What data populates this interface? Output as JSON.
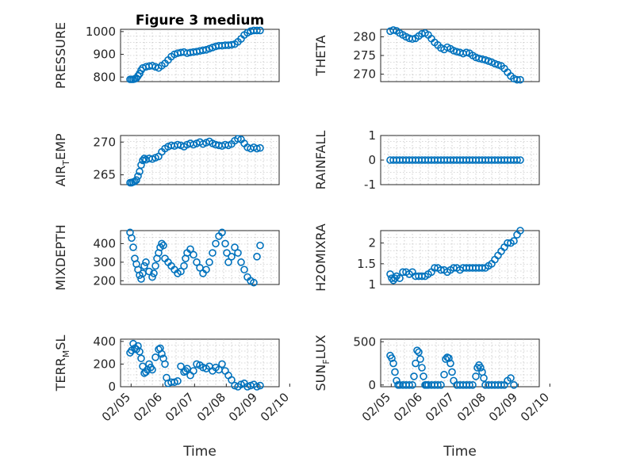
{
  "figure": {
    "title": "Figure 3 medium",
    "marker_color": "#0072BD"
  },
  "chart_data": [
    {
      "type": "scatter",
      "ylabel": "PRESSURE",
      "title": "Figure 3 medium",
      "ylim": [
        780,
        1010
      ],
      "yticks": [
        800,
        900,
        1000
      ],
      "xlim": [
        0,
        5
      ],
      "xticks": [],
      "xticklabels": [],
      "xlabel": "",
      "x": [
        0.3,
        0.35,
        0.4,
        0.45,
        0.5,
        0.55,
        0.6,
        0.65,
        0.7,
        0.8,
        0.9,
        1.0,
        1.1,
        1.2,
        1.3,
        1.4,
        1.5,
        1.6,
        1.7,
        1.8,
        1.9,
        2.0,
        2.1,
        2.2,
        2.3,
        2.4,
        2.5,
        2.6,
        2.7,
        2.8,
        2.9,
        3.0,
        3.1,
        3.2,
        3.3,
        3.4,
        3.5,
        3.6,
        3.7,
        3.8,
        3.9,
        4.0,
        4.1,
        4.2,
        4.3,
        4.4
      ],
      "y": [
        790,
        790,
        790,
        792,
        795,
        805,
        815,
        830,
        840,
        845,
        848,
        850,
        845,
        840,
        850,
        860,
        875,
        890,
        900,
        905,
        908,
        910,
        905,
        908,
        910,
        912,
        915,
        918,
        920,
        925,
        930,
        935,
        938,
        938,
        940,
        940,
        942,
        945,
        955,
        968,
        985,
        995,
        1002,
        1005,
        1005,
        1005
      ]
    },
    {
      "type": "scatter",
      "ylabel": "THETA",
      "ylim": [
        268,
        282
      ],
      "yticks": [
        270,
        275,
        280
      ],
      "xlim": [
        0,
        5
      ],
      "xticks": [],
      "xticklabels": [],
      "xlabel": "",
      "x": [
        0.3,
        0.4,
        0.5,
        0.6,
        0.7,
        0.8,
        0.9,
        1.0,
        1.1,
        1.2,
        1.3,
        1.4,
        1.5,
        1.6,
        1.7,
        1.8,
        1.9,
        2.0,
        2.1,
        2.2,
        2.3,
        2.4,
        2.5,
        2.6,
        2.7,
        2.8,
        2.9,
        3.0,
        3.1,
        3.2,
        3.3,
        3.4,
        3.5,
        3.6,
        3.7,
        3.8,
        3.9,
        4.0,
        4.1,
        4.2,
        4.3,
        4.4
      ],
      "y": [
        281.5,
        281.8,
        281.6,
        281,
        280.5,
        280,
        279.6,
        279.4,
        279.6,
        280.2,
        280.8,
        281,
        280.5,
        279.5,
        278.5,
        277.8,
        277,
        276.6,
        277.2,
        276.8,
        276.3,
        276,
        275.8,
        275.5,
        275.8,
        275.6,
        275,
        274.5,
        274.2,
        274,
        273.8,
        273.5,
        273.2,
        272.8,
        272.5,
        272.2,
        271.5,
        270.5,
        269.5,
        268.8,
        268.5,
        268.5
      ]
    },
    {
      "type": "scatter",
      "ylabel": "AIR_T_EMP",
      "ylabel_main": "AIR",
      "ylabel_sub": "T",
      "ylabel_rest": "EMP",
      "ylim": [
        263.5,
        271
      ],
      "yticks": [
        265,
        270
      ],
      "xlim": [
        0,
        5
      ],
      "xticks": [],
      "xticklabels": [],
      "xlabel": "",
      "x": [
        0.3,
        0.35,
        0.4,
        0.45,
        0.5,
        0.55,
        0.6,
        0.65,
        0.7,
        0.75,
        0.8,
        0.9,
        1.0,
        1.1,
        1.2,
        1.3,
        1.4,
        1.5,
        1.6,
        1.7,
        1.8,
        1.9,
        2.0,
        2.1,
        2.2,
        2.3,
        2.4,
        2.5,
        2.6,
        2.7,
        2.8,
        2.9,
        3.0,
        3.1,
        3.2,
        3.3,
        3.4,
        3.5,
        3.6,
        3.7,
        3.8,
        3.9,
        4.0,
        4.1,
        4.2,
        4.3,
        4.4
      ],
      "y": [
        263.8,
        263.8,
        263.9,
        264,
        264.2,
        264.8,
        265.5,
        266.5,
        267.2,
        267.5,
        267.3,
        267.5,
        267.4,
        267.6,
        267.8,
        268.5,
        269,
        269.3,
        269.5,
        269.4,
        269.6,
        269.5,
        269.3,
        269.6,
        269.8,
        269.6,
        269.8,
        270,
        269.7,
        269.9,
        270.1,
        269.8,
        269.6,
        269.5,
        269.4,
        269.6,
        269.5,
        269.7,
        270.2,
        270.5,
        270.4,
        269.8,
        269.2,
        269,
        269.2,
        269,
        269.1
      ]
    },
    {
      "type": "scatter",
      "ylabel": "RAINFALL",
      "ylim": [
        -1,
        1
      ],
      "yticks": [
        -1,
        0,
        1
      ],
      "xlim": [
        0,
        5
      ],
      "xticks": [],
      "xticklabels": [],
      "xlabel": "",
      "x": [
        0.3,
        0.4,
        0.5,
        0.6,
        0.7,
        0.8,
        0.9,
        1.0,
        1.1,
        1.2,
        1.3,
        1.4,
        1.5,
        1.6,
        1.7,
        1.8,
        1.9,
        2.0,
        2.1,
        2.2,
        2.3,
        2.4,
        2.5,
        2.6,
        2.7,
        2.8,
        2.9,
        3.0,
        3.1,
        3.2,
        3.3,
        3.4,
        3.5,
        3.6,
        3.7,
        3.8,
        3.9,
        4.0,
        4.1,
        4.2,
        4.3,
        4.4
      ],
      "y": [
        0,
        0,
        0,
        0,
        0,
        0,
        0,
        0,
        0,
        0,
        0,
        0,
        0,
        0,
        0,
        0,
        0,
        0,
        0,
        0,
        0,
        0,
        0,
        0,
        0,
        0,
        0,
        0,
        0,
        0,
        0,
        0,
        0,
        0,
        0,
        0,
        0,
        0,
        0,
        0,
        0,
        0
      ]
    },
    {
      "type": "scatter",
      "ylabel": "MIXDEPTH",
      "ylim": [
        180,
        470
      ],
      "yticks": [
        200,
        300,
        400
      ],
      "xlim": [
        0,
        5
      ],
      "xticks": [],
      "xticklabels": [],
      "xlabel": "",
      "x": [
        0.3,
        0.35,
        0.4,
        0.45,
        0.5,
        0.55,
        0.6,
        0.65,
        0.7,
        0.75,
        0.8,
        0.9,
        1.0,
        1.05,
        1.1,
        1.15,
        1.2,
        1.25,
        1.3,
        1.35,
        1.4,
        1.5,
        1.6,
        1.7,
        1.8,
        1.9,
        2.0,
        2.05,
        2.1,
        2.2,
        2.3,
        2.4,
        2.5,
        2.6,
        2.7,
        2.8,
        2.9,
        3.0,
        3.1,
        3.2,
        3.3,
        3.35,
        3.4,
        3.5,
        3.6,
        3.7,
        3.8,
        3.9,
        4.0,
        4.1,
        4.2,
        4.3,
        4.4
      ],
      "y": [
        460,
        430,
        380,
        320,
        290,
        260,
        230,
        210,
        240,
        280,
        300,
        250,
        220,
        240,
        280,
        320,
        350,
        380,
        400,
        390,
        320,
        300,
        280,
        260,
        240,
        250,
        280,
        320,
        350,
        370,
        340,
        300,
        270,
        240,
        260,
        300,
        350,
        400,
        440,
        460,
        400,
        350,
        300,
        330,
        380,
        350,
        300,
        260,
        220,
        200,
        190,
        330,
        390
      ]
    },
    {
      "type": "scatter",
      "ylabel": "H2OMIXRA",
      "ylim": [
        1,
        2.3
      ],
      "yticks": [
        1,
        1.5,
        2
      ],
      "xlim": [
        0,
        5
      ],
      "xticks": [],
      "xticklabels": [],
      "xlabel": "",
      "x": [
        0.3,
        0.35,
        0.4,
        0.45,
        0.5,
        0.6,
        0.7,
        0.8,
        0.9,
        1.0,
        1.1,
        1.2,
        1.3,
        1.4,
        1.5,
        1.6,
        1.7,
        1.8,
        1.9,
        2.0,
        2.1,
        2.2,
        2.3,
        2.4,
        2.5,
        2.6,
        2.7,
        2.8,
        2.9,
        3.0,
        3.1,
        3.2,
        3.3,
        3.4,
        3.5,
        3.6,
        3.7,
        3.8,
        3.9,
        4.0,
        4.1,
        4.2,
        4.3,
        4.4
      ],
      "y": [
        1.25,
        1.15,
        1.1,
        1.15,
        1.2,
        1.15,
        1.3,
        1.3,
        1.25,
        1.3,
        1.2,
        1.2,
        1.2,
        1.2,
        1.25,
        1.3,
        1.4,
        1.4,
        1.35,
        1.35,
        1.3,
        1.35,
        1.4,
        1.4,
        1.35,
        1.4,
        1.4,
        1.4,
        1.4,
        1.4,
        1.4,
        1.4,
        1.4,
        1.45,
        1.5,
        1.6,
        1.7,
        1.8,
        1.9,
        2.0,
        2.0,
        2.05,
        2.2,
        2.3
      ]
    },
    {
      "type": "scatter",
      "ylabel": "TERR_MSL",
      "ylabel_main": "TERR",
      "ylabel_sub": "M",
      "ylabel_rest": "SL",
      "ylim": [
        0,
        420
      ],
      "yticks": [
        0,
        200,
        400
      ],
      "xlim": [
        0,
        5
      ],
      "xticks": [
        0.333,
        1.333,
        2.333,
        3.333,
        4.333,
        5.333
      ],
      "xticklabels": [
        "02/05",
        "02/06",
        "02/07",
        "02/08",
        "02/09",
        "02/10"
      ],
      "xlabel": "Time",
      "x": [
        0.3,
        0.35,
        0.4,
        0.45,
        0.5,
        0.55,
        0.6,
        0.65,
        0.7,
        0.75,
        0.8,
        0.85,
        0.9,
        0.95,
        1.0,
        1.1,
        1.2,
        1.25,
        1.3,
        1.35,
        1.4,
        1.45,
        1.5,
        1.6,
        1.7,
        1.8,
        1.9,
        2.0,
        2.05,
        2.1,
        2.2,
        2.3,
        2.4,
        2.5,
        2.6,
        2.7,
        2.8,
        2.9,
        3.0,
        3.1,
        3.2,
        3.3,
        3.4,
        3.5,
        3.6,
        3.7,
        3.8,
        3.9,
        4.0,
        4.1,
        4.2,
        4.3,
        4.4
      ],
      "y": [
        300,
        320,
        380,
        340,
        330,
        360,
        310,
        250,
        180,
        120,
        130,
        150,
        200,
        170,
        150,
        260,
        330,
        340,
        290,
        250,
        200,
        80,
        30,
        40,
        40,
        50,
        180,
        130,
        140,
        160,
        100,
        140,
        200,
        190,
        170,
        160,
        180,
        140,
        170,
        150,
        200,
        140,
        100,
        60,
        10,
        0,
        20,
        30,
        0,
        10,
        20,
        0,
        10
      ]
    },
    {
      "type": "scatter",
      "ylabel": "SUN_FLUX",
      "ylabel_main": "SUN",
      "ylabel_sub": "F",
      "ylabel_rest": "LUX",
      "ylim": [
        -20,
        530
      ],
      "yticks": [
        0,
        500
      ],
      "xlim": [
        0,
        5
      ],
      "xticks": [
        0.333,
        1.333,
        2.333,
        3.333,
        4.333,
        5.333
      ],
      "xticklabels": [
        "02/05",
        "02/06",
        "02/07",
        "02/08",
        "02/09",
        "02/10"
      ],
      "xlabel": "Time",
      "x": [
        0.3,
        0.35,
        0.4,
        0.45,
        0.5,
        0.55,
        0.6,
        0.7,
        0.8,
        0.9,
        1.0,
        1.05,
        1.1,
        1.15,
        1.2,
        1.25,
        1.3,
        1.35,
        1.4,
        1.45,
        1.5,
        1.6,
        1.7,
        1.8,
        1.9,
        2.0,
        2.05,
        2.1,
        2.15,
        2.2,
        2.25,
        2.3,
        2.4,
        2.5,
        2.6,
        2.7,
        2.8,
        2.9,
        3.0,
        3.05,
        3.1,
        3.15,
        3.2,
        3.25,
        3.3,
        3.4,
        3.5,
        3.6,
        3.7,
        3.8,
        3.9,
        4.0,
        4.1,
        4.2
      ],
      "y": [
        340,
        310,
        250,
        150,
        50,
        0,
        0,
        0,
        0,
        0,
        0,
        100,
        250,
        400,
        380,
        300,
        200,
        100,
        0,
        0,
        0,
        0,
        0,
        0,
        0,
        120,
        300,
        320,
        310,
        250,
        150,
        50,
        0,
        0,
        0,
        0,
        0,
        0,
        100,
        200,
        230,
        200,
        150,
        80,
        0,
        0,
        0,
        0,
        0,
        0,
        0,
        50,
        80,
        0
      ]
    }
  ]
}
